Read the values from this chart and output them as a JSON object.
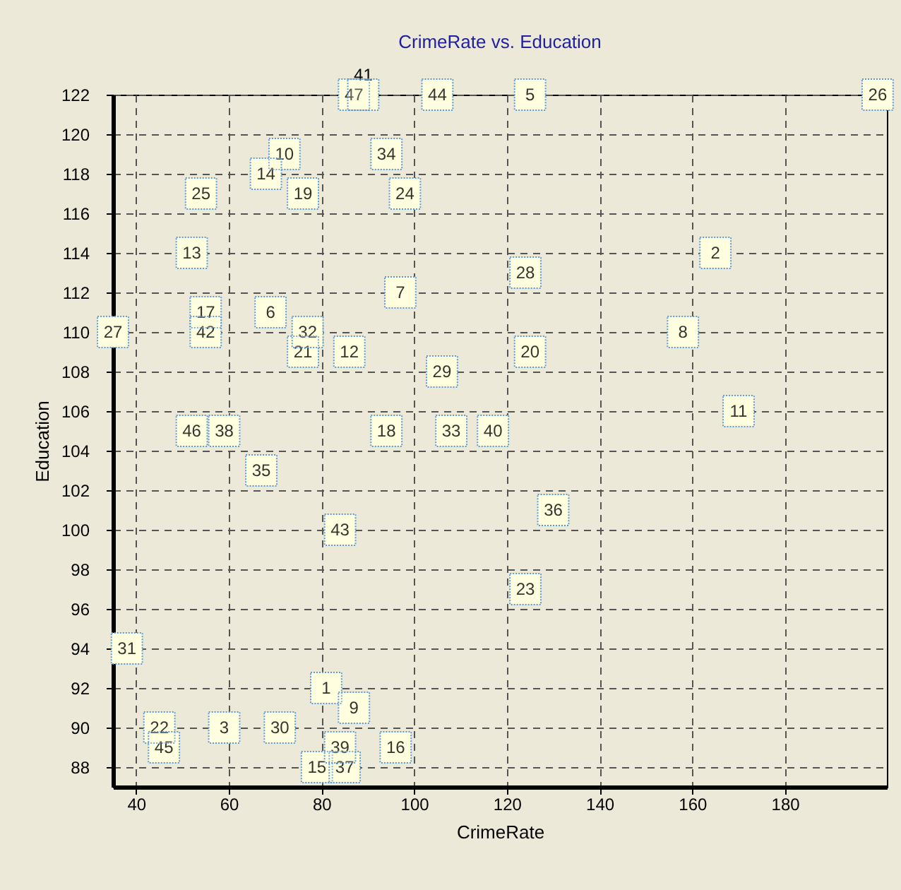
{
  "chart_data": {
    "type": "scatter",
    "title": "CrimeRate vs. Education",
    "xlabel": "CrimeRate",
    "ylabel": "Education",
    "color": "#ffffe0",
    "marker": "square",
    "grid": true,
    "xlim": [
      35,
      202
    ],
    "xticks": [
      40,
      60,
      80,
      100,
      120,
      140,
      160,
      180
    ],
    "ylim": [
      87,
      122
    ],
    "yticks": [
      88,
      90,
      92,
      94,
      96,
      98,
      100,
      102,
      104,
      106,
      108,
      110,
      112,
      114,
      116,
      118,
      120,
      122
    ],
    "series": [
      {
        "name": "1",
        "x": [
          81
        ],
        "values": [
          92
        ]
      },
      {
        "name": "2",
        "x": [
          165
        ],
        "values": [
          114
        ]
      },
      {
        "name": "3",
        "x": [
          59
        ],
        "values": [
          90
        ]
      },
      {
        "name": "5",
        "x": [
          125
        ],
        "values": [
          122
        ]
      },
      {
        "name": "6",
        "x": [
          69
        ],
        "values": [
          111
        ]
      },
      {
        "name": "7",
        "x": [
          97
        ],
        "values": [
          112
        ]
      },
      {
        "name": "8",
        "x": [
          158
        ],
        "values": [
          110
        ]
      },
      {
        "name": "9",
        "x": [
          87
        ],
        "values": [
          91
        ]
      },
      {
        "name": "10",
        "x": [
          72
        ],
        "values": [
          119
        ]
      },
      {
        "name": "11",
        "x": [
          170
        ],
        "values": [
          106
        ]
      },
      {
        "name": "12",
        "x": [
          86
        ],
        "values": [
          109
        ]
      },
      {
        "name": "13",
        "x": [
          52
        ],
        "values": [
          114
        ]
      },
      {
        "name": "14",
        "x": [
          68
        ],
        "values": [
          118
        ]
      },
      {
        "name": "15",
        "x": [
          79
        ],
        "values": [
          88
        ]
      },
      {
        "name": "16",
        "x": [
          96
        ],
        "values": [
          89
        ]
      },
      {
        "name": "17",
        "x": [
          55
        ],
        "values": [
          111
        ]
      },
      {
        "name": "18",
        "x": [
          94
        ],
        "values": [
          105
        ]
      },
      {
        "name": "19",
        "x": [
          76
        ],
        "values": [
          117
        ]
      },
      {
        "name": "20",
        "x": [
          125
        ],
        "values": [
          109
        ]
      },
      {
        "name": "21",
        "x": [
          76
        ],
        "values": [
          109
        ]
      },
      {
        "name": "22",
        "x": [
          45
        ],
        "values": [
          90
        ]
      },
      {
        "name": "23",
        "x": [
          124
        ],
        "values": [
          97
        ]
      },
      {
        "name": "24",
        "x": [
          98
        ],
        "values": [
          117
        ]
      },
      {
        "name": "25",
        "x": [
          54
        ],
        "values": [
          117
        ]
      },
      {
        "name": "26",
        "x": [
          200
        ],
        "values": [
          122
        ]
      },
      {
        "name": "27",
        "x": [
          35
        ],
        "values": [
          110
        ]
      },
      {
        "name": "28",
        "x": [
          124
        ],
        "values": [
          113
        ]
      },
      {
        "name": "29",
        "x": [
          106
        ],
        "values": [
          108
        ]
      },
      {
        "name": "30",
        "x": [
          71
        ],
        "values": [
          90
        ]
      },
      {
        "name": "31",
        "x": [
          38
        ],
        "values": [
          94
        ]
      },
      {
        "name": "32",
        "x": [
          77
        ],
        "values": [
          110
        ]
      },
      {
        "name": "33",
        "x": [
          108
        ],
        "values": [
          105
        ]
      },
      {
        "name": "34",
        "x": [
          94
        ],
        "values": [
          119
        ]
      },
      {
        "name": "35",
        "x": [
          67
        ],
        "values": [
          103
        ]
      },
      {
        "name": "36",
        "x": [
          130
        ],
        "values": [
          101
        ]
      },
      {
        "name": "37",
        "x": [
          85
        ],
        "values": [
          88
        ]
      },
      {
        "name": "38",
        "x": [
          59
        ],
        "values": [
          105
        ]
      },
      {
        "name": "39",
        "x": [
          84
        ],
        "values": [
          89
        ]
      },
      {
        "name": "40",
        "x": [
          117
        ],
        "values": [
          105
        ]
      },
      {
        "name": "41",
        "x": [
          89
        ],
        "values": [
          122
        ]
      },
      {
        "name": "42",
        "x": [
          55
        ],
        "values": [
          110
        ]
      },
      {
        "name": "43",
        "x": [
          84
        ],
        "values": [
          100
        ]
      },
      {
        "name": "44",
        "x": [
          105
        ],
        "values": [
          122
        ]
      },
      {
        "name": "45",
        "x": [
          46
        ],
        "values": [
          89
        ]
      },
      {
        "name": "46",
        "x": [
          52
        ],
        "values": [
          105
        ]
      },
      {
        "name": "47",
        "x": [
          87
        ],
        "values": [
          122
        ]
      }
    ]
  }
}
